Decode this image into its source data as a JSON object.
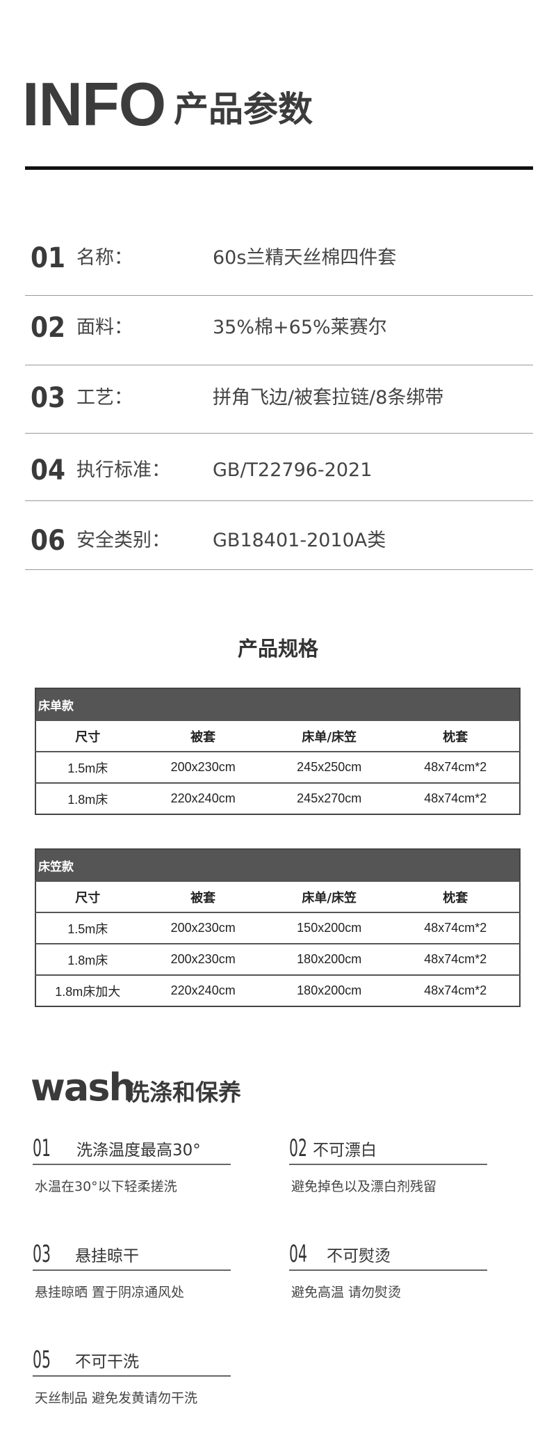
{
  "header": {
    "title_en": "INFO",
    "title_cn": "产品参数"
  },
  "params": [
    {
      "num": "01",
      "label": "名称：",
      "value": "60s兰精天丝棉四件套"
    },
    {
      "num": "02",
      "label": "面料：",
      "value": "35%棉+65%莱赛尔"
    },
    {
      "num": "03",
      "label": "工艺：",
      "value": "拼角飞边/被套拉链/8条绑带"
    },
    {
      "num": "04",
      "label": "执行标准：",
      "value": "GB/T22796-2021"
    },
    {
      "num": "06",
      "label": "安全类别：",
      "value": "GB18401-2010A类"
    }
  ],
  "spec": {
    "title": "产品规格",
    "tables": [
      {
        "caption": "床单款",
        "headers": [
          "尺寸",
          "被套",
          "床单/床笠",
          "枕套"
        ],
        "rows": [
          [
            "1.5m床",
            "200x230cm",
            "245x250cm",
            "48x74cm*2"
          ],
          [
            "1.8m床",
            "220x240cm",
            "245x270cm",
            "48x74cm*2"
          ]
        ]
      },
      {
        "caption": "床笠款",
        "headers": [
          "尺寸",
          "被套",
          "床单/床笠",
          "枕套"
        ],
        "rows": [
          [
            "1.5m床",
            "200x230cm",
            "150x200cm",
            "48x74cm*2"
          ],
          [
            "1.8m床",
            "200x230cm",
            "180x200cm",
            "48x74cm*2"
          ],
          [
            "1.8m床加大",
            "220x240cm",
            "180x200cm",
            "48x74cm*2"
          ]
        ]
      }
    ]
  },
  "wash": {
    "title_en": "wash",
    "title_cn": "洗涤和保养",
    "items": [
      {
        "num": "01",
        "title": "洗涤温度最高30°",
        "desc": "水温在30°以下轻柔搓洗"
      },
      {
        "num": "02",
        "title": "不可漂白",
        "desc": "避免掉色以及漂白剂残留"
      },
      {
        "num": "03",
        "title": "悬挂晾干",
        "desc": "悬挂晾晒 置于阴凉通风处"
      },
      {
        "num": "04",
        "title": "不可熨烫",
        "desc": "避免高温 请勿熨烫"
      },
      {
        "num": "05",
        "title": "不可干洗",
        "desc": "天丝制品 避免发黄请勿干洗"
      }
    ]
  }
}
